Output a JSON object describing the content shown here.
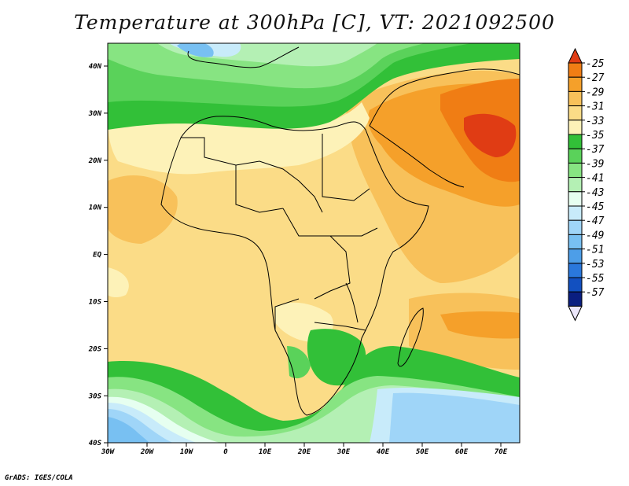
{
  "title": "Temperature at 300hPa [C], VT: 2021092500",
  "credit": "GrADS: IGES/COLA",
  "map": {
    "lon_ticks": [
      "30W",
      "20W",
      "10W",
      "0",
      "10E",
      "20E",
      "30E",
      "40E",
      "50E",
      "60E",
      "70E"
    ],
    "lat_ticks": [
      "40N",
      "30N",
      "20N",
      "10N",
      "EQ",
      "10S",
      "20S",
      "30S",
      "40S"
    ]
  },
  "colorbar": {
    "labels": [
      "-25",
      "-27",
      "-29",
      "-31",
      "-33",
      "-35",
      "-37",
      "-39",
      "-41",
      "-43",
      "-45",
      "-47",
      "-49",
      "-51",
      "-53",
      "-55",
      "-57"
    ],
    "colors": [
      "#e03c14",
      "#f07d14",
      "#f5a02a",
      "#f8c15a",
      "#fbdc87",
      "#fdf2b8",
      "#32c038",
      "#5ad25a",
      "#87e482",
      "#b4f0b4",
      "#e6fff0",
      "#c8ebfa",
      "#9fd5f8",
      "#78c0f2",
      "#4d9ee8",
      "#2a78dc",
      "#1250c0",
      "#0a1e80",
      "#ebe6fa"
    ]
  }
}
